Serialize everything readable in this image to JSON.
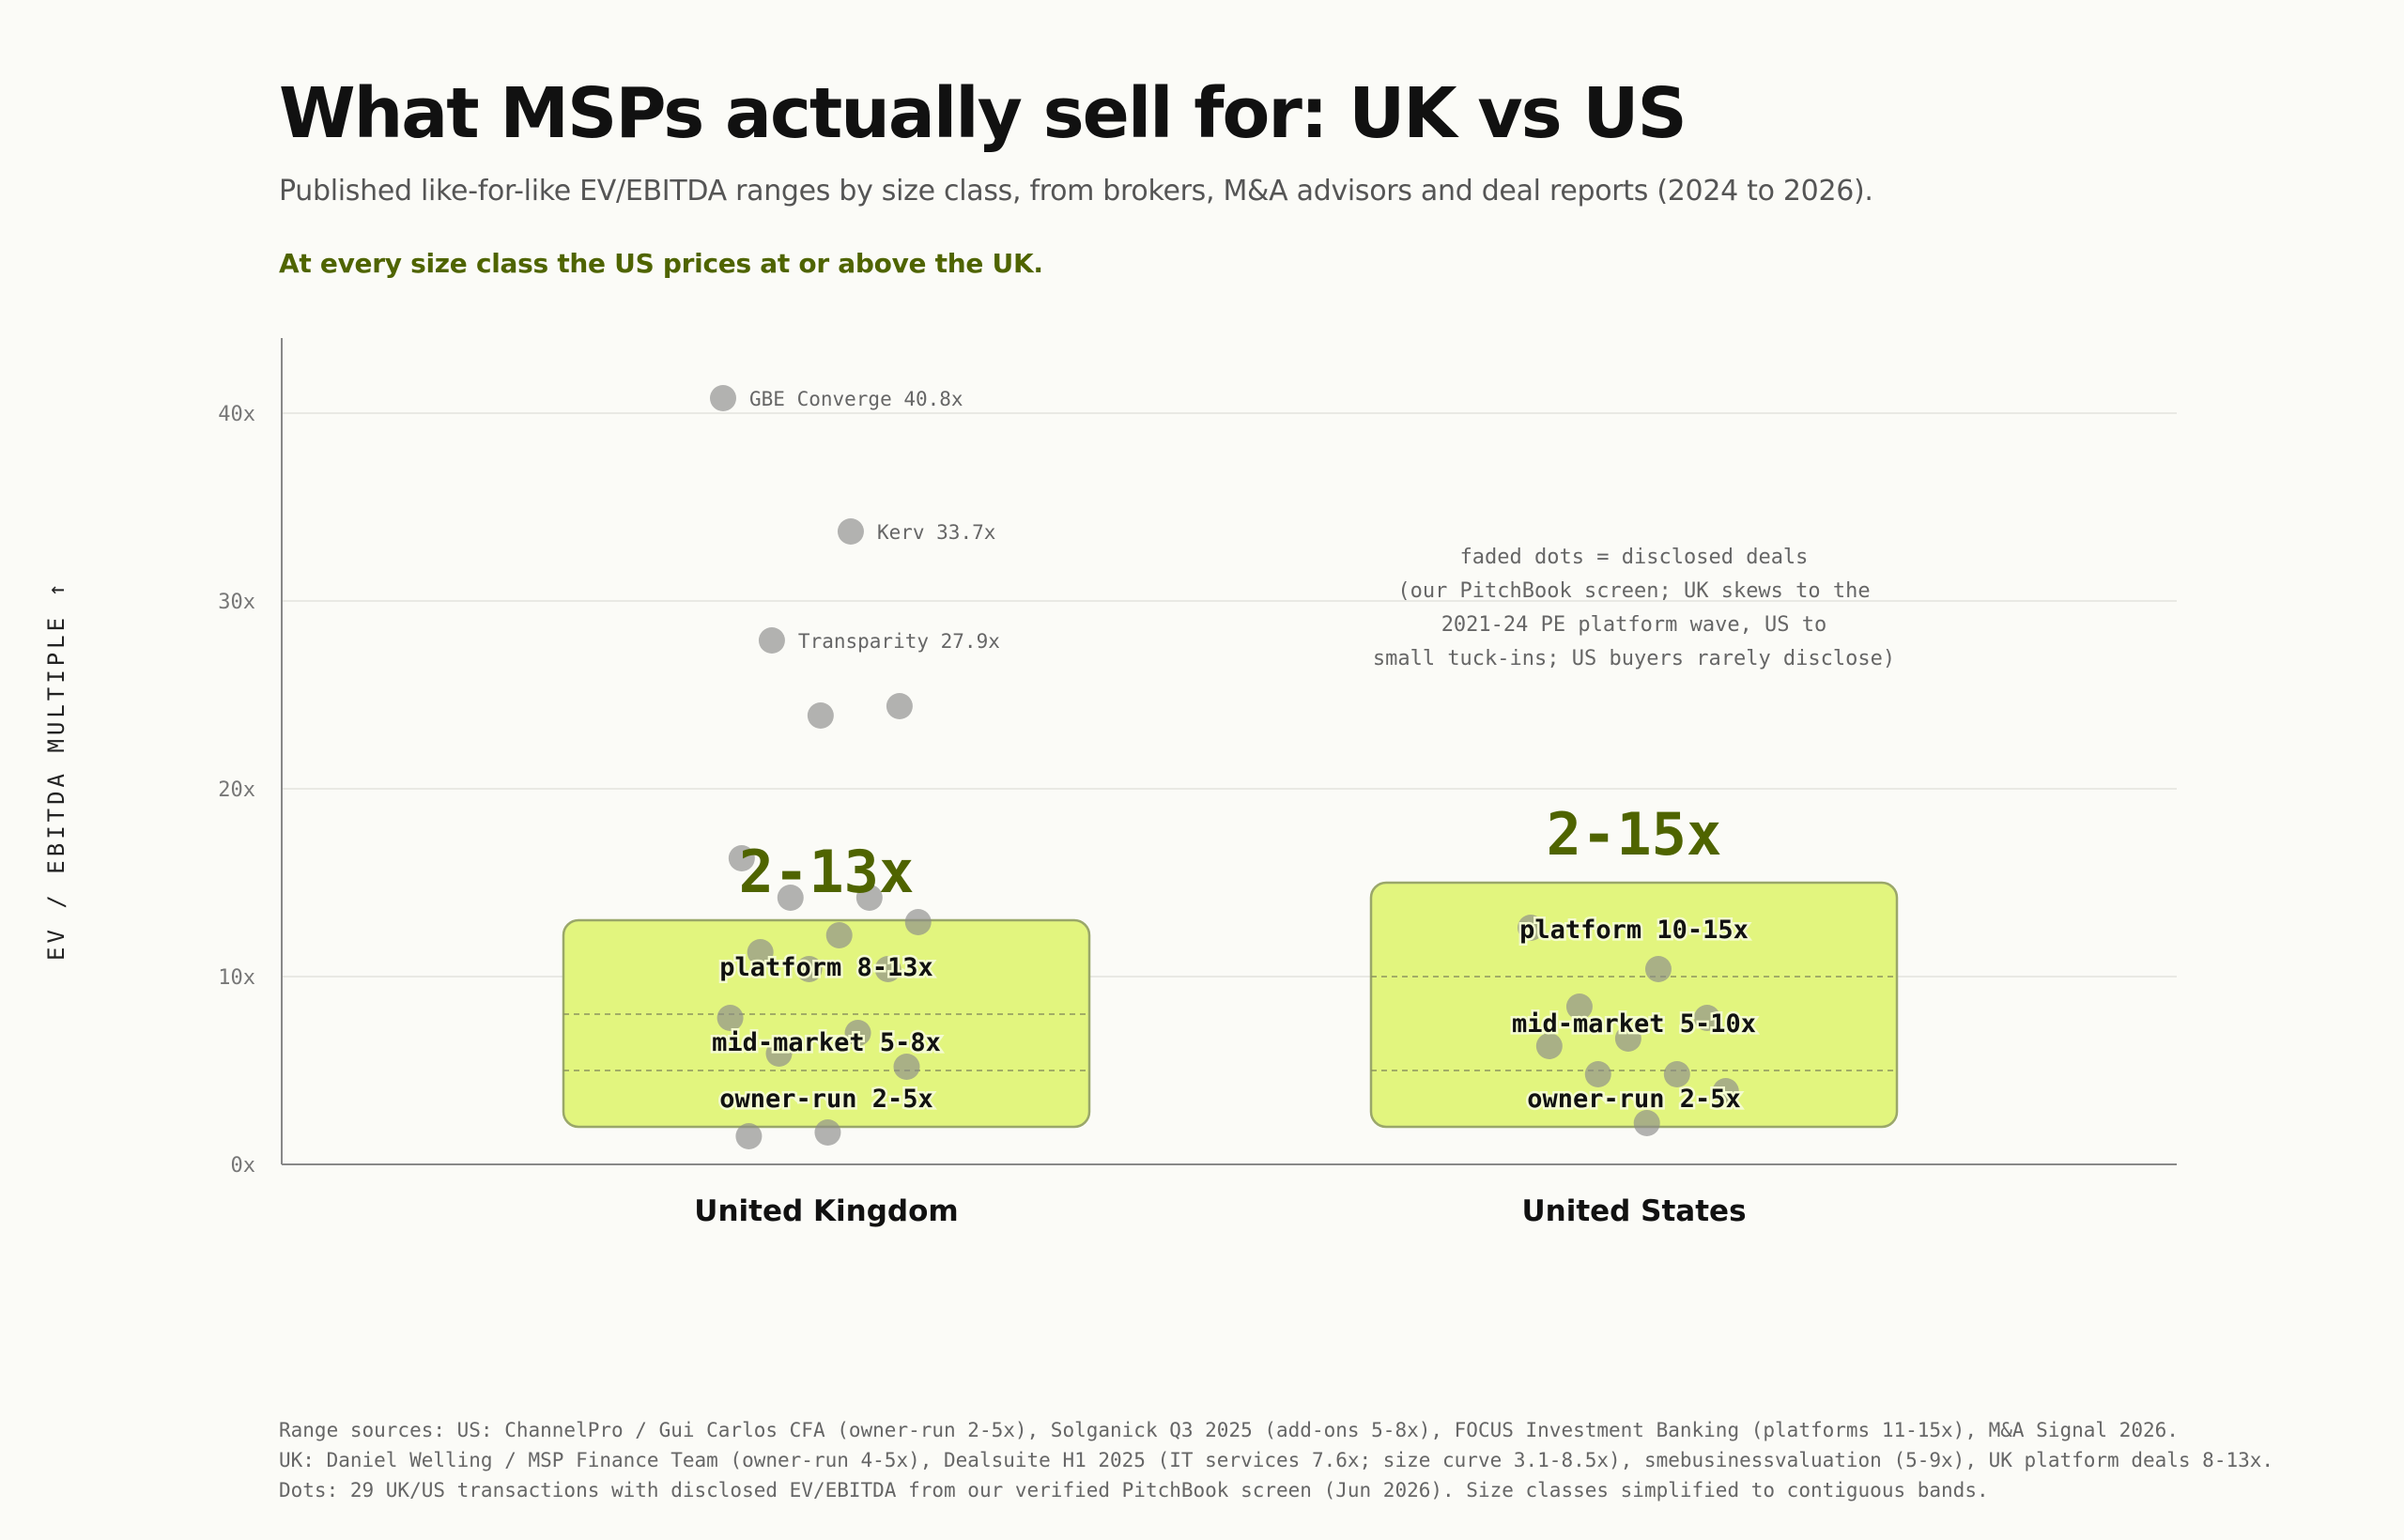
{
  "header": {
    "title": "What MSPs actually sell for: UK vs US",
    "subtitle": "Published like-for-like EV/EBITDA ranges by size class, from brokers, M&A advisors and deal reports (2024 to 2026).",
    "takeaway": "At every size class the US prices at or above the UK."
  },
  "colors": {
    "accent": "#4f6400",
    "band_fill": "#e2f57e",
    "band_stroke": "#9aa76a",
    "dot": "#8a8a8a",
    "axis": "#888888",
    "grid": "#e3e3dd"
  },
  "chart_data": {
    "type": "range-band-with-dots",
    "ylabel": "EV / EBITDA MULTIPLE ↑",
    "ylim": [
      0,
      44
    ],
    "y_ticks": [
      {
        "value": 0,
        "label": "0x"
      },
      {
        "value": 10,
        "label": "10x"
      },
      {
        "value": 20,
        "label": "20x"
      },
      {
        "value": 30,
        "label": "30x"
      },
      {
        "value": 40,
        "label": "40x"
      }
    ],
    "grid": true,
    "categories": [
      {
        "name": "United Kingdom",
        "headline": "2-13x",
        "range": [
          2,
          13
        ],
        "bands": [
          {
            "label": "platform 8-13x",
            "low": 8,
            "high": 13
          },
          {
            "label": "mid-market 5-8x",
            "low": 5,
            "high": 8
          },
          {
            "label": "owner-run 2-5x",
            "low": 2,
            "high": 5
          }
        ],
        "deals": [
          {
            "value": 40.8,
            "label": "GBE Converge 40.8x"
          },
          {
            "value": 33.7,
            "label": "Kerv 33.7x"
          },
          {
            "value": 27.9,
            "label": "Transparity 27.9x"
          },
          {
            "value": 24.4
          },
          {
            "value": 23.9
          },
          {
            "value": 16.3
          },
          {
            "value": 14.2
          },
          {
            "value": 14.2
          },
          {
            "value": 12.9
          },
          {
            "value": 12.2
          },
          {
            "value": 11.3
          },
          {
            "value": 10.4
          },
          {
            "value": 10.4
          },
          {
            "value": 7.8
          },
          {
            "value": 7.0
          },
          {
            "value": 5.9
          },
          {
            "value": 5.2
          },
          {
            "value": 1.7
          },
          {
            "value": 1.5
          }
        ]
      },
      {
        "name": "United States",
        "headline": "2-15x",
        "range": [
          2,
          15
        ],
        "bands": [
          {
            "label": "platform 10-15x",
            "low": 10,
            "high": 15
          },
          {
            "label": "mid-market 5-10x",
            "low": 5,
            "high": 10
          },
          {
            "label": "owner-run 2-5x",
            "low": 2,
            "high": 5
          }
        ],
        "deals": [
          {
            "value": 12.6
          },
          {
            "value": 10.4
          },
          {
            "value": 8.4
          },
          {
            "value": 7.8
          },
          {
            "value": 6.7
          },
          {
            "value": 6.3
          },
          {
            "value": 4.8
          },
          {
            "value": 4.8
          },
          {
            "value": 3.9
          },
          {
            "value": 2.2
          }
        ]
      }
    ],
    "annotation": [
      "faded dots = disclosed deals",
      "(our PitchBook screen; UK skews to the",
      "2021-24 PE platform wave, US to",
      "small tuck-ins; US buyers rarely disclose)"
    ]
  },
  "footer": {
    "line1": "Range sources: US: ChannelPro / Gui Carlos CFA (owner-run 2-5x), Solganick Q3 2025 (add-ons 5-8x), FOCUS Investment Banking (platforms 11-15x), M&A Signal 2026.",
    "line2": "UK: Daniel Welling / MSP Finance Team (owner-run 4-5x), Dealsuite H1 2025 (IT services 7.6x; size curve 3.1-8.5x), smebusinessvaluation (5-9x), UK platform deals 8-13x.",
    "line3": "Dots: 29 UK/US transactions with disclosed EV/EBITDA from our verified PitchBook screen (Jun 2026). Size classes simplified to contiguous bands."
  }
}
